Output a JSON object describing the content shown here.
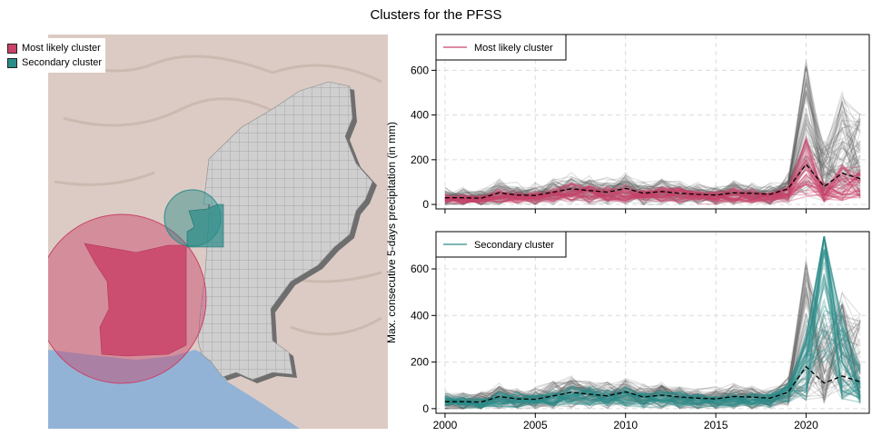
{
  "title": "Clusters for the PFSS",
  "map": {
    "legend": [
      {
        "label": "Most likely cluster",
        "color": "#c9436a"
      },
      {
        "label": "Secondary cluster",
        "color": "#2a8c89"
      }
    ],
    "colors": {
      "land": "#dccbc4",
      "sea": "#93b3d6",
      "grid_fill": "#cfcfcf",
      "grid_line": "#9a9a9a"
    }
  },
  "chart_data": [
    {
      "type": "line",
      "panel": "top",
      "legend": "Most likely cluster",
      "legend_placement": "top-left",
      "ylabel": "Max. consecutive 5-days precipitation (in mm)",
      "xlim": [
        1999.5,
        2023.5
      ],
      "ylim": [
        -20,
        760
      ],
      "yticks": [
        0,
        200,
        400,
        600
      ],
      "xticks": [
        2000,
        2005,
        2010,
        2015,
        2020
      ],
      "grid": true,
      "highlight_color": "#c9436a",
      "years": [
        2000,
        2001,
        2002,
        2003,
        2004,
        2005,
        2006,
        2007,
        2008,
        2009,
        2010,
        2011,
        2012,
        2013,
        2014,
        2015,
        2016,
        2017,
        2018,
        2019,
        2020,
        2021,
        2022,
        2023
      ],
      "mean": [
        30,
        30,
        28,
        52,
        42,
        40,
        55,
        70,
        62,
        55,
        72,
        50,
        58,
        50,
        45,
        42,
        52,
        50,
        45,
        70,
        180,
        80,
        140,
        115
      ],
      "highlight_mean": [
        25,
        22,
        22,
        35,
        30,
        30,
        40,
        55,
        50,
        42,
        50,
        40,
        42,
        40,
        35,
        32,
        40,
        38,
        35,
        45,
        150,
        50,
        90,
        85
      ]
    },
    {
      "type": "line",
      "panel": "bottom",
      "legend": "Secondary cluster",
      "legend_placement": "top-left",
      "xlim": [
        1999.5,
        2023.5
      ],
      "ylim": [
        -20,
        760
      ],
      "yticks": [
        0,
        200,
        400,
        600
      ],
      "xticks": [
        2000,
        2005,
        2010,
        2015,
        2020
      ],
      "grid": true,
      "highlight_color": "#2a8c89",
      "years": [
        2000,
        2001,
        2002,
        2003,
        2004,
        2005,
        2006,
        2007,
        2008,
        2009,
        2010,
        2011,
        2012,
        2013,
        2014,
        2015,
        2016,
        2017,
        2018,
        2019,
        2020,
        2021,
        2022,
        2023
      ],
      "mean": [
        30,
        30,
        28,
        52,
        42,
        40,
        55,
        70,
        62,
        55,
        72,
        50,
        58,
        50,
        45,
        42,
        52,
        50,
        45,
        70,
        180,
        110,
        140,
        115
      ],
      "highlight_mean": [
        35,
        30,
        22,
        40,
        38,
        35,
        45,
        60,
        55,
        45,
        55,
        42,
        45,
        42,
        35,
        32,
        40,
        40,
        38,
        60,
        160,
        560,
        200,
        95
      ]
    }
  ]
}
